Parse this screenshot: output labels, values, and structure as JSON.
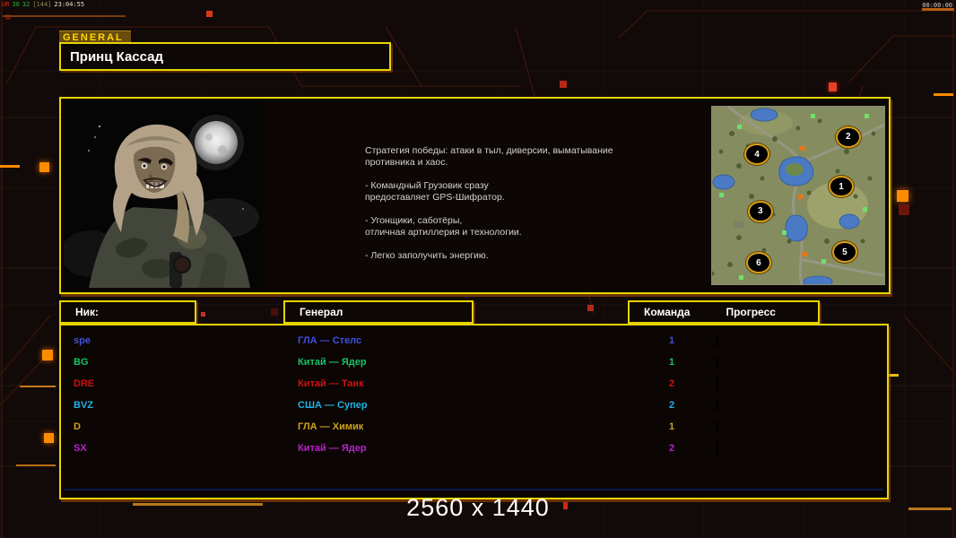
{
  "statusbar": {
    "perf": {
      "label": "UR",
      "val1": "30",
      "val2": "32",
      "val3": "[144]",
      "time": "23:04:55"
    },
    "timer": "00:00:00"
  },
  "general_panel": {
    "tab_label": "GENERAL",
    "name": "Принц Кассад",
    "description": "Стратегия победы: атаки в тыл, диверсии, выматывание\n противника и хаос.\n\n- Командный Грузовик сразу\nпредоставляет GPS-Шифратор.\n\n- Угонщики, саботёры,\nотличная артиллерия и технологии.\n\n- Легко заполучить энергию."
  },
  "minimap": {
    "markers": [
      {
        "n": "1",
        "x": 74,
        "y": 44
      },
      {
        "n": "2",
        "x": 78,
        "y": 16
      },
      {
        "n": "3",
        "x": 27,
        "y": 58
      },
      {
        "n": "4",
        "x": 25,
        "y": 26
      },
      {
        "n": "5",
        "x": 76,
        "y": 81
      },
      {
        "n": "6",
        "x": 26,
        "y": 87
      }
    ]
  },
  "lobby_table": {
    "headers": {
      "nick": "Ник:",
      "general": "Генерал",
      "team": "Команда",
      "progress": "Прогресс"
    },
    "rows": [
      {
        "nick": "spe",
        "general": "ГЛА — Стелс",
        "team": "1",
        "color": "#4050e0",
        "progress": 2
      },
      {
        "nick": "BG",
        "general": "Китай — Ядер",
        "team": "1",
        "color": "#17c468",
        "progress": 0
      },
      {
        "nick": "DRE",
        "general": "Китай — Танк",
        "team": "2",
        "color": "#cc1212",
        "progress": 0
      },
      {
        "nick": "BVZ",
        "general": "США — Супер",
        "team": "2",
        "color": "#1eb2e4",
        "progress": 0
      },
      {
        "nick": "D",
        "general": "ГЛА — Химик",
        "team": "1",
        "color": "#cda41c",
        "progress": 0
      },
      {
        "nick": "SX",
        "general": "Китай — Ядер",
        "team": "2",
        "color": "#b822cc",
        "progress": 0
      }
    ]
  },
  "footer": {
    "resolution": "2560 x 1440"
  },
  "theme": {
    "border_yellow": "#e8d400",
    "accent_orange": "#ff8c00",
    "status_red": "#d03020",
    "text_white": "#ffffff"
  }
}
